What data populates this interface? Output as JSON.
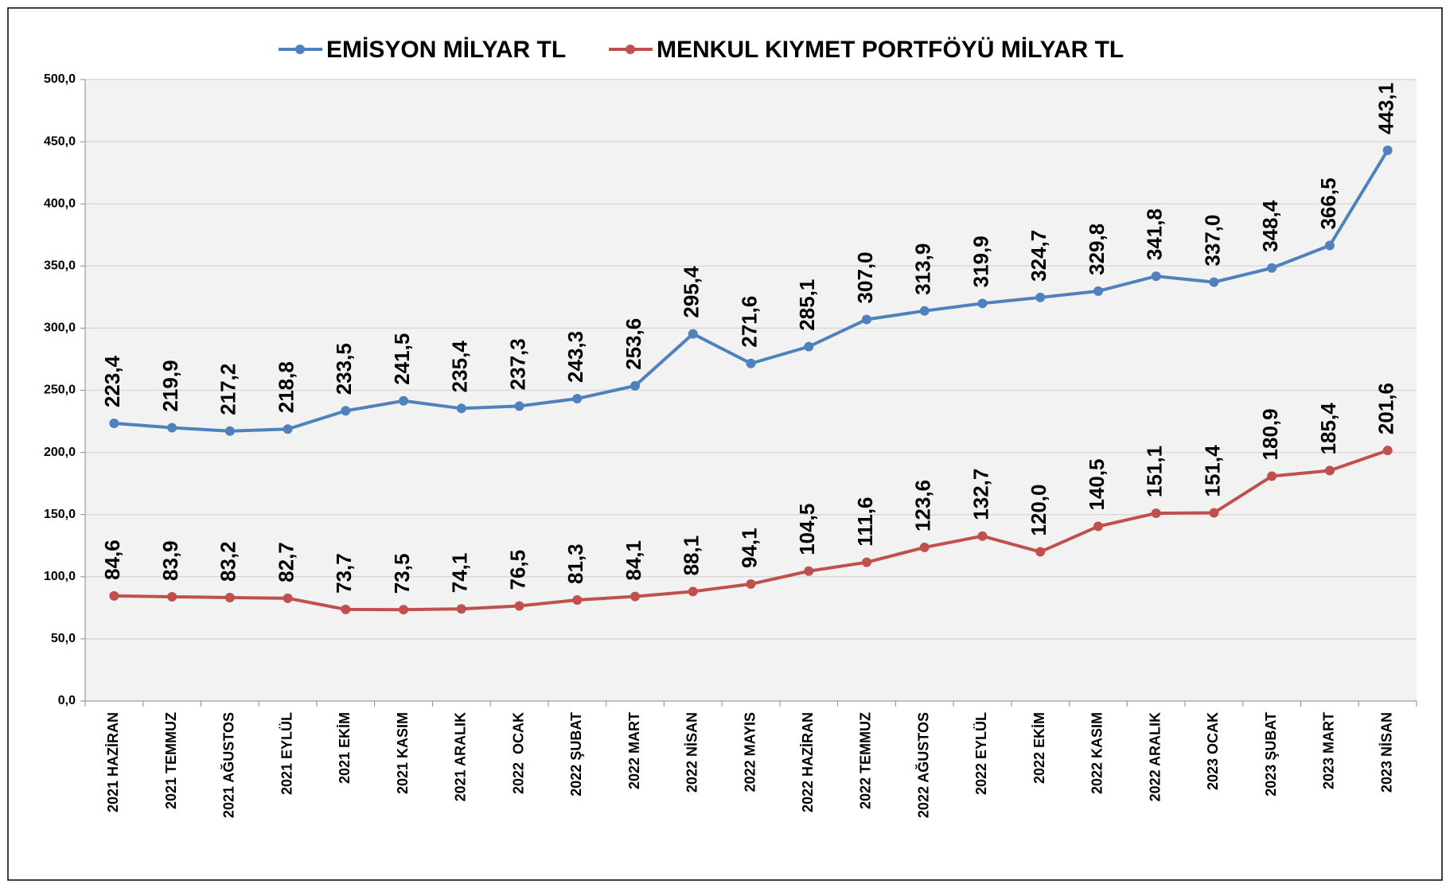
{
  "chart_data": {
    "type": "line",
    "categories": [
      "2021 HAZİRAN",
      "2021 TEMMUZ",
      "2021 AĞUSTOS",
      "2021 EYLÜL",
      "2021 EKİM",
      "2021 KASIM",
      "2021 ARALIK",
      "2022  OCAK",
      "2022 ŞUBAT",
      "2022 MART",
      "2022 NİSAN",
      "2022 MAYIS",
      "2022 HAZİRAN",
      "2022 TEMMUZ",
      "2022 AĞUSTOS",
      "2022 EYLÜL",
      "2022 EKİM",
      "2022 KASIM",
      "2022 ARALIK",
      "2023 OCAK",
      "2023 ŞUBAT",
      "2023 MART",
      "2023 NİSAN"
    ],
    "series": [
      {
        "name": "EMİSYON MİLYAR TL",
        "color": "#4f81bd",
        "values": [
          223.4,
          219.9,
          217.2,
          218.8,
          233.5,
          241.5,
          235.4,
          237.3,
          243.3,
          253.6,
          295.4,
          271.6,
          285.1,
          307.0,
          313.9,
          319.9,
          324.7,
          329.8,
          341.8,
          337.0,
          348.4,
          366.5,
          443.1
        ],
        "value_labels": [
          "223,4",
          "219,9",
          "217,2",
          "218,8",
          "233,5",
          "241,5",
          "235,4",
          "237,3",
          "243,3",
          "253,6",
          "295,4",
          "271,6",
          "285,1",
          "307,0",
          "313,9",
          "319,9",
          "324,7",
          "329,8",
          "341,8",
          "337,0",
          "348,4",
          "366,5",
          "443,1"
        ]
      },
      {
        "name": "MENKUL KIYMET PORTFÖYÜ MİLYAR TL",
        "color": "#c0504d",
        "values": [
          84.6,
          83.9,
          83.2,
          82.7,
          73.7,
          73.5,
          74.1,
          76.5,
          81.3,
          84.1,
          88.1,
          94.1,
          104.5,
          111.6,
          123.6,
          132.7,
          120.0,
          140.5,
          151.1,
          151.4,
          180.9,
          185.4,
          201.6
        ],
        "value_labels": [
          "84,6",
          "83,9",
          "83,2",
          "82,7",
          "73,7",
          "73,5",
          "74,1",
          "76,5",
          "81,3",
          "84,1",
          "88,1",
          "94,1",
          "104,5",
          "111,6",
          "123,6",
          "132,7",
          "120,0",
          "140,5",
          "151,1",
          "151,4",
          "180,9",
          "185,4",
          "201,6"
        ]
      }
    ],
    "ylim": [
      0,
      500
    ],
    "yticks": [
      {
        "value": 0,
        "label": "0,0"
      },
      {
        "value": 50,
        "label": "50,0"
      },
      {
        "value": 100,
        "label": "100,0"
      },
      {
        "value": 150,
        "label": "150,0"
      },
      {
        "value": 200,
        "label": "200,0"
      },
      {
        "value": 250,
        "label": "250,0"
      },
      {
        "value": 300,
        "label": "300,0"
      },
      {
        "value": 350,
        "label": "350,0"
      },
      {
        "value": 400,
        "label": "400,0"
      },
      {
        "value": 450,
        "label": "450,0"
      },
      {
        "value": 500,
        "label": "500,0"
      }
    ],
    "grid": true,
    "legend": "top"
  }
}
